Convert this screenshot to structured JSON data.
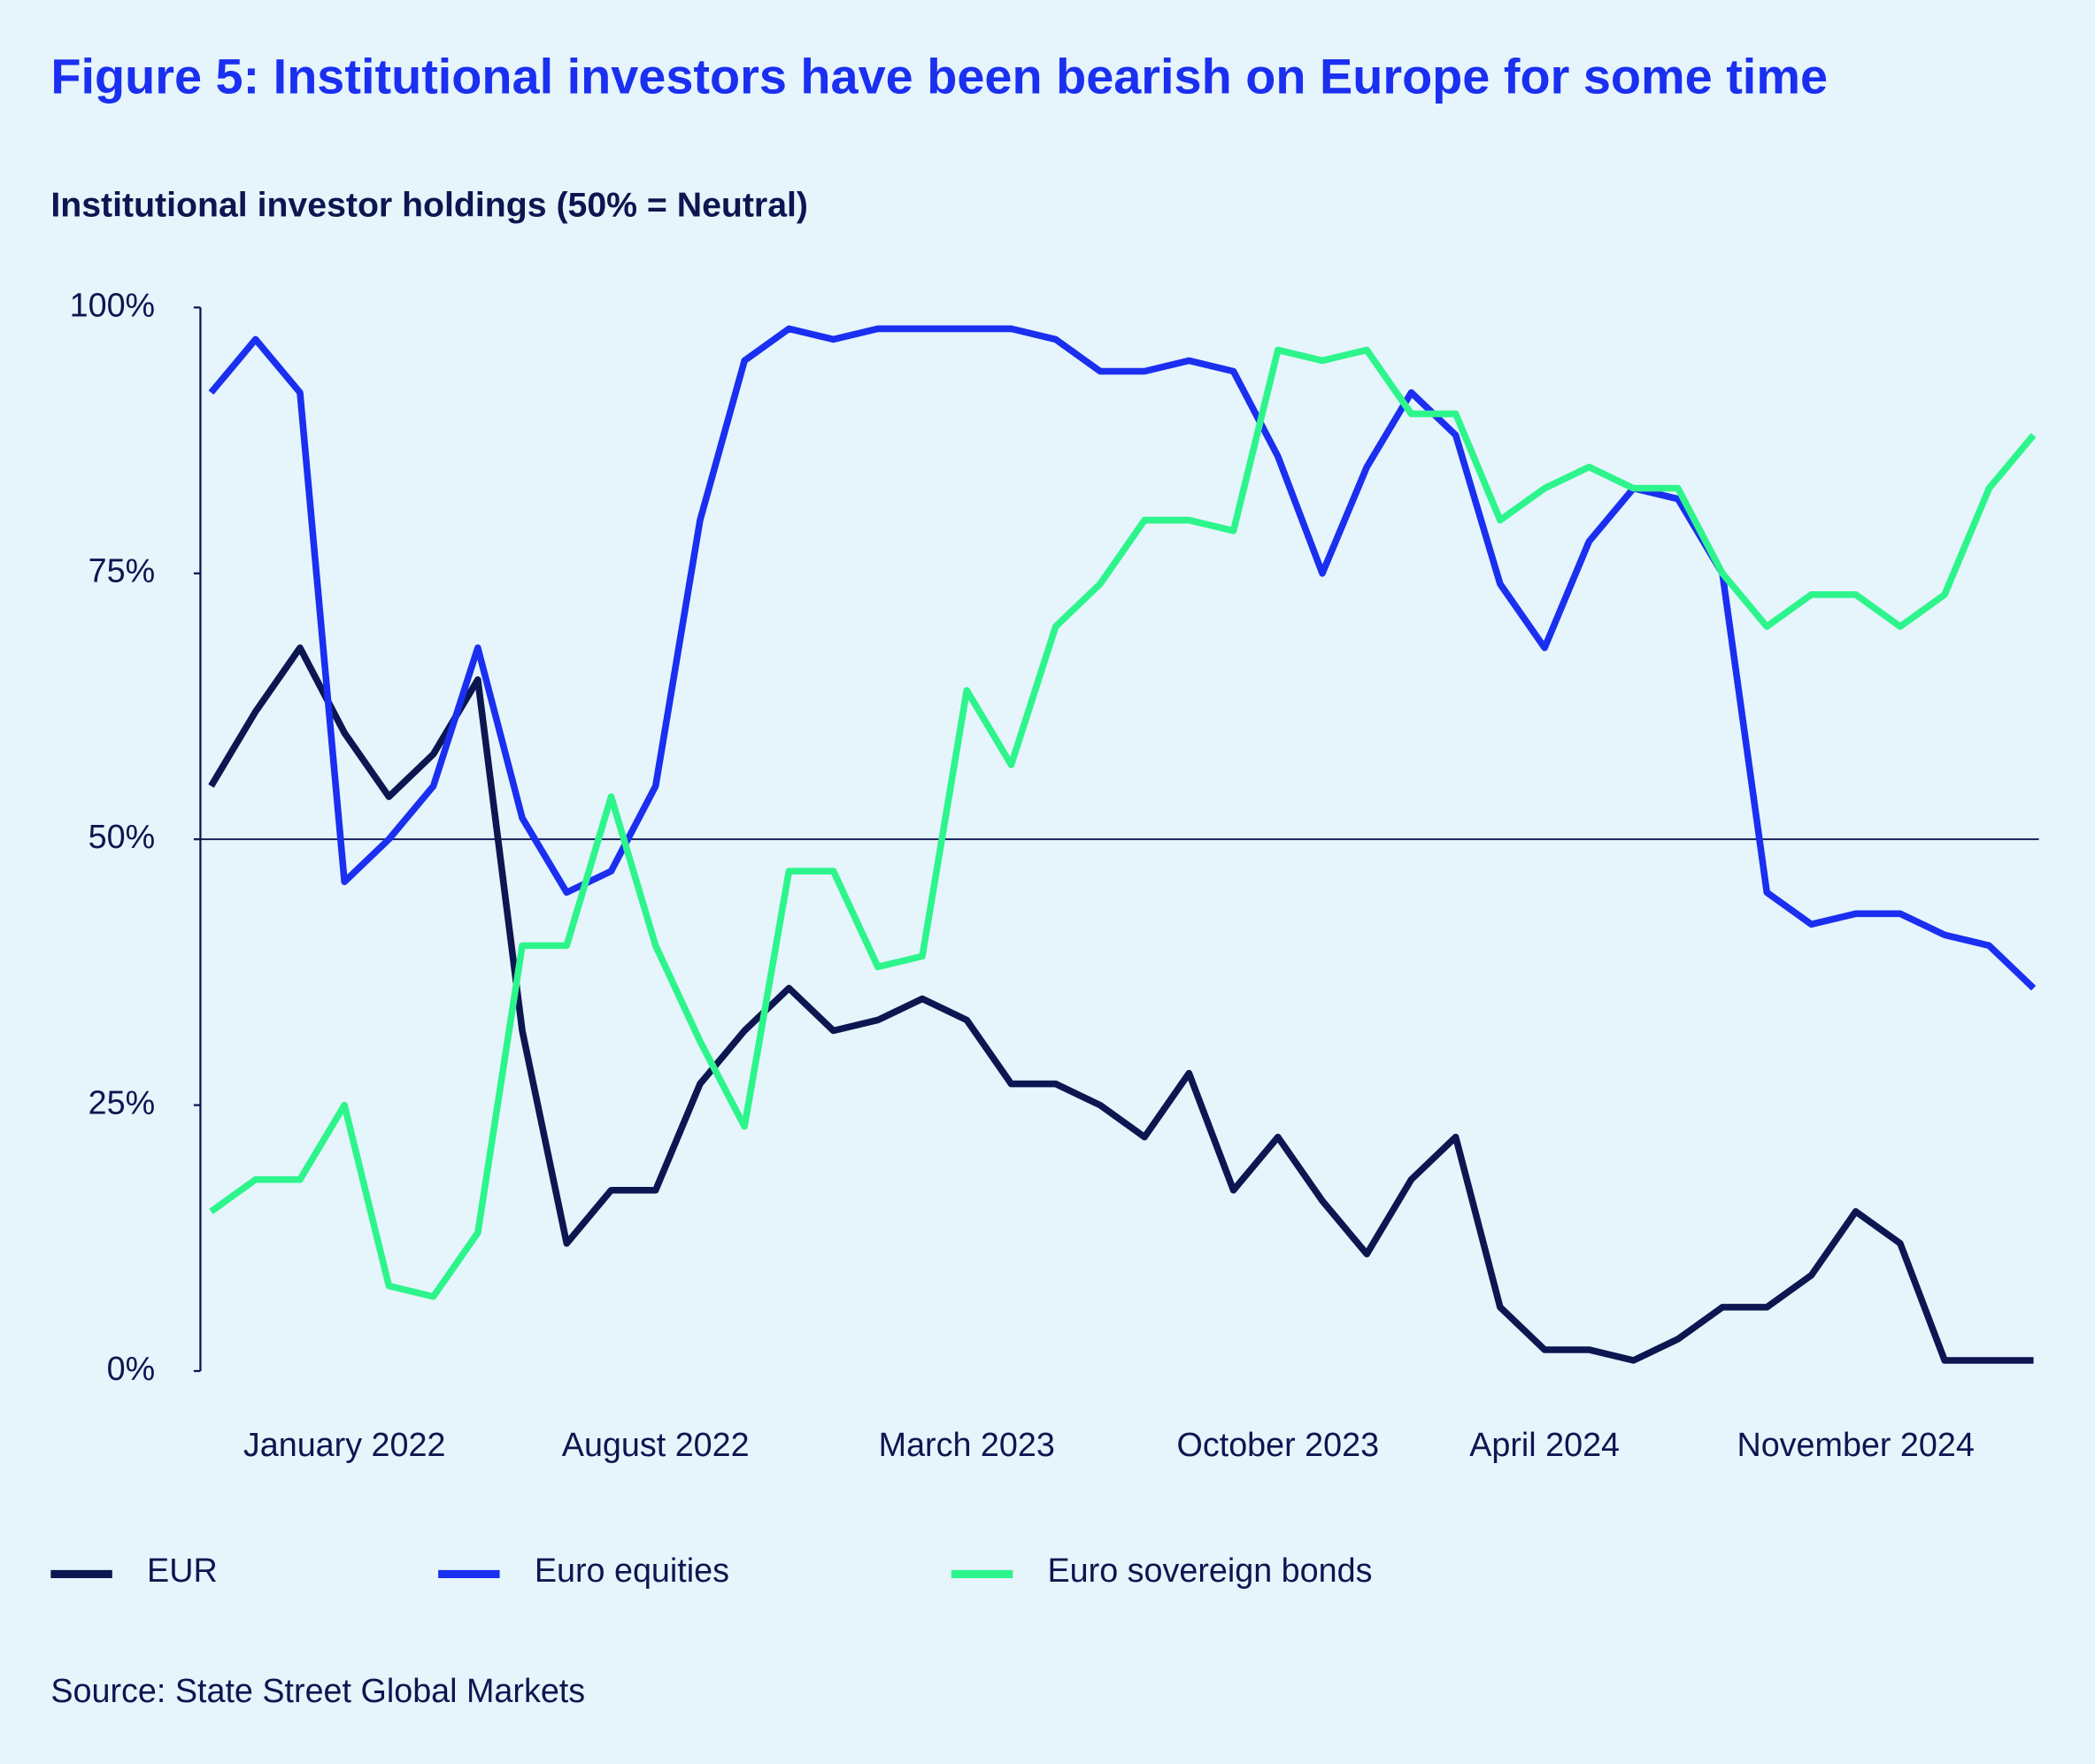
{
  "chart_data": {
    "type": "line",
    "title": "Figure 5: Institutional investors have been bearish on Europe for some time",
    "subtitle": "Institutional investor holdings (50% = Neutral)",
    "source": "Source: State Street Global Markets",
    "x": [
      "2021-10",
      "2021-11",
      "2021-12",
      "2022-01",
      "2022-02",
      "2022-03",
      "2022-04",
      "2022-05",
      "2022-06",
      "2022-07",
      "2022-08",
      "2022-09",
      "2022-10",
      "2022-11",
      "2022-12",
      "2023-01",
      "2023-02",
      "2023-03",
      "2023-04",
      "2023-05",
      "2023-06",
      "2023-07",
      "2023-08",
      "2023-09",
      "2023-10",
      "2023-11",
      "2023-12",
      "2024-01",
      "2024-02",
      "2024-03",
      "2024-04",
      "2024-05",
      "2024-06",
      "2024-07",
      "2024-08",
      "2024-09",
      "2024-10",
      "2024-11",
      "2024-12",
      "2025-01",
      "2025-02",
      "2025-03"
    ],
    "xlim": [
      "2021-10",
      "2025-03"
    ],
    "xticks": [
      {
        "value": "2022-01",
        "label": "January 2022"
      },
      {
        "value": "2022-08",
        "label": "August 2022"
      },
      {
        "value": "2023-03",
        "label": "March 2023"
      },
      {
        "value": "2023-10",
        "label": "October 2023"
      },
      {
        "value": "2024-04",
        "label": "April 2024"
      },
      {
        "value": "2024-11",
        "label": "November 2024"
      }
    ],
    "ylim": [
      0,
      100
    ],
    "yticks": [
      {
        "value": 0,
        "label": "0%"
      },
      {
        "value": 25,
        "label": "25%"
      },
      {
        "value": 50,
        "label": "50%"
      },
      {
        "value": 75,
        "label": "75%"
      },
      {
        "value": 100,
        "label": "100%"
      }
    ],
    "reference_line": 50,
    "series": [
      {
        "name": "EUR",
        "color": "#0c1650",
        "values": [
          55,
          62,
          68,
          60,
          54,
          58,
          65,
          32,
          12,
          17,
          17,
          27,
          32,
          36,
          32,
          33,
          35,
          33,
          27,
          27,
          25,
          22,
          28,
          17,
          22,
          16,
          11,
          18,
          22,
          6,
          2,
          2,
          1,
          3,
          6,
          6,
          9,
          15,
          12,
          1,
          1,
          1
        ]
      },
      {
        "name": "Euro equities",
        "color": "#1a2ff0",
        "values": [
          92,
          97,
          92,
          46,
          50,
          55,
          68,
          52,
          45,
          47,
          55,
          80,
          95,
          98,
          97,
          98,
          98,
          98,
          98,
          97,
          94,
          94,
          95,
          94,
          86,
          75,
          85,
          92,
          88,
          74,
          68,
          78,
          83,
          82,
          75,
          45,
          42,
          43,
          43,
          41,
          40,
          36
        ]
      },
      {
        "name": "Euro sovereign bonds",
        "color": "#2df58c",
        "values": [
          15,
          18,
          18,
          25,
          8,
          7,
          13,
          40,
          40,
          54,
          40,
          31,
          23,
          47,
          47,
          38,
          39,
          64,
          57,
          70,
          74,
          80,
          80,
          79,
          96,
          95,
          96,
          90,
          90,
          80,
          83,
          85,
          83,
          83,
          75,
          70,
          73,
          73,
          70,
          73,
          83,
          88
        ]
      }
    ]
  }
}
